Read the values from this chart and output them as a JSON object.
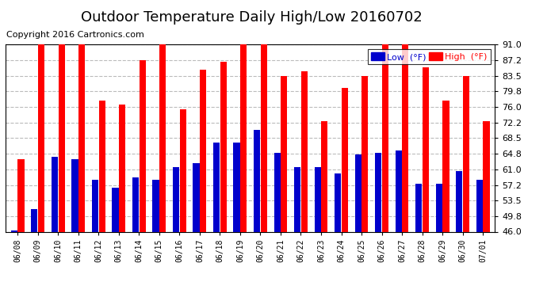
{
  "title": "Outdoor Temperature Daily High/Low 20160702",
  "copyright": "Copyright 2016 Cartronics.com",
  "legend_low": "Low  (°F)",
  "legend_high": "High  (°F)",
  "dates": [
    "06/08",
    "06/09",
    "06/10",
    "06/11",
    "06/12",
    "06/13",
    "06/14",
    "06/15",
    "06/16",
    "06/17",
    "06/18",
    "06/19",
    "06/20",
    "06/21",
    "06/22",
    "06/23",
    "06/24",
    "06/25",
    "06/26",
    "06/27",
    "06/28",
    "06/29",
    "06/30",
    "07/01"
  ],
  "highs": [
    63.5,
    91.0,
    91.0,
    91.0,
    77.5,
    76.5,
    87.2,
    91.0,
    75.5,
    85.0,
    86.8,
    91.0,
    91.0,
    83.5,
    84.5,
    72.5,
    80.5,
    83.5,
    91.0,
    91.0,
    85.5,
    77.5,
    83.5,
    72.5
  ],
  "lows": [
    46.2,
    51.5,
    64.0,
    63.5,
    58.5,
    56.5,
    59.0,
    58.5,
    61.5,
    62.5,
    67.5,
    67.5,
    70.5,
    65.0,
    61.5,
    61.5,
    60.0,
    64.5,
    65.0,
    65.5,
    57.5,
    57.5,
    60.5,
    58.5
  ],
  "ymin": 46.0,
  "ymax": 91.0,
  "yticks": [
    46.0,
    49.8,
    53.5,
    57.2,
    61.0,
    64.8,
    68.5,
    72.2,
    76.0,
    79.8,
    83.5,
    87.2,
    91.0
  ],
  "high_color": "#ff0000",
  "low_color": "#0000cc",
  "bg_color": "#ffffff",
  "plot_bg_color": "#ffffff",
  "grid_color": "#bbbbbb",
  "title_fontsize": 13,
  "copyright_fontsize": 8,
  "bar_width": 0.32,
  "bar_gap": 0.02
}
